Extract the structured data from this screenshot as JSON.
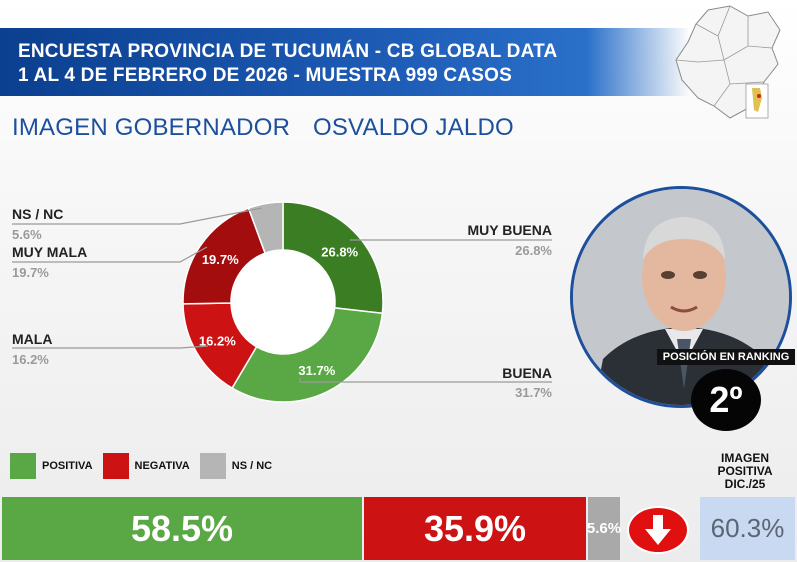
{
  "header": {
    "line1": "ENCUESTA PROVINCIA DE TUCUMÁN - CB GLOBAL DATA",
    "line2": "1 AL 4 DE FEBRERO DE 2026 - MUESTRA 999 CASOS"
  },
  "subtitle": {
    "left": "IMAGEN GOBERNADOR",
    "right": "OSVALDO JALDO"
  },
  "chart_data": {
    "type": "pie",
    "donut": true,
    "categories": [
      "MUY BUENA",
      "BUENA",
      "MALA",
      "MUY MALA",
      "NS / NC"
    ],
    "values": [
      26.8,
      31.7,
      16.2,
      19.7,
      5.6
    ],
    "value_labels": [
      "26.8%",
      "31.7%",
      "16.2%",
      "19.7%",
      "5.6%"
    ],
    "colors": [
      "#3a7d23",
      "#5aa845",
      "#cc1212",
      "#a30d0d",
      "#b5b5b5"
    ],
    "legend": [
      {
        "label": "POSITIVA",
        "color": "#5aa845"
      },
      {
        "label": "NEGATIVA",
        "color": "#cc1212"
      },
      {
        "label": "NS / NC",
        "color": "#b5b5b5"
      }
    ],
    "legend_position": "bottom-left"
  },
  "labels": {
    "muy_buena": {
      "name": "MUY BUENA",
      "value": "26.8%"
    },
    "buena": {
      "name": "BUENA",
      "value": "31.7%"
    },
    "mala": {
      "name": "MALA",
      "value": "16.2%"
    },
    "muy_mala": {
      "name": "MUY MALA",
      "value": "19.7%"
    },
    "ns_nc": {
      "name": "NS / NC",
      "value": "5.6%"
    }
  },
  "ranking": {
    "label": "POSICIÓN EN RANKING",
    "value": "2º"
  },
  "summary": {
    "positive": "58.5%",
    "negative": "35.9%",
    "ns_nc": "5.6%",
    "previous_label_line1": "IMAGEN",
    "previous_label_line2": "POSITIVA",
    "previous_label_line3": "DIC./25",
    "previous_value": "60.3%",
    "trend_icon": "arrow-down-icon"
  }
}
